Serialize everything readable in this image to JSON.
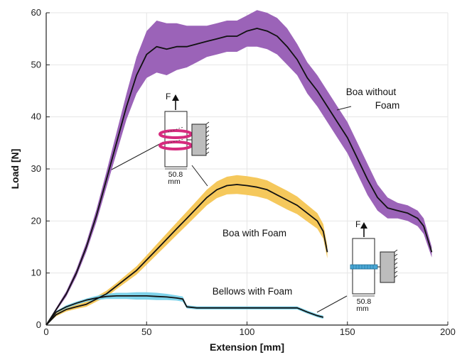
{
  "chart_data": {
    "type": "area",
    "xlabel": "Extension [mm]",
    "ylabel": "Load [N]",
    "xlim": [
      0,
      200
    ],
    "ylim": [
      0,
      60
    ],
    "xticks": [
      0,
      50,
      100,
      150,
      200
    ],
    "yticks": [
      0,
      10,
      20,
      30,
      40,
      50,
      60
    ],
    "grid": true,
    "series": [
      {
        "name": "Boa without Foam",
        "band_color": "#9b63b8",
        "line_color": "#111111",
        "points": [
          [
            0,
            0
          ],
          [
            5,
            3
          ],
          [
            10,
            6
          ],
          [
            15,
            10
          ],
          [
            20,
            15
          ],
          [
            25,
            21
          ],
          [
            30,
            28
          ],
          [
            35,
            35
          ],
          [
            40,
            42
          ],
          [
            45,
            48
          ],
          [
            50,
            52
          ],
          [
            55,
            53.5
          ],
          [
            60,
            53
          ],
          [
            65,
            53.5
          ],
          [
            70,
            53.5
          ],
          [
            75,
            54
          ],
          [
            80,
            54.5
          ],
          [
            85,
            55
          ],
          [
            90,
            55.5
          ],
          [
            95,
            55.5
          ],
          [
            100,
            56.5
          ],
          [
            105,
            57
          ],
          [
            110,
            56.5
          ],
          [
            115,
            55.5
          ],
          [
            120,
            53.5
          ],
          [
            125,
            51
          ],
          [
            130,
            47.5
          ],
          [
            135,
            45
          ],
          [
            140,
            42
          ],
          [
            145,
            39
          ],
          [
            150,
            36
          ],
          [
            155,
            32
          ],
          [
            160,
            28
          ],
          [
            165,
            24.5
          ],
          [
            170,
            22.5
          ],
          [
            175,
            22
          ],
          [
            180,
            21.5
          ],
          [
            185,
            20.5
          ],
          [
            188,
            19
          ],
          [
            192,
            14
          ]
        ],
        "halfwidth": [
          0,
          0.3,
          0.5,
          0.7,
          0.9,
          1.2,
          1.5,
          2,
          2.5,
          3.5,
          4.5,
          5,
          5,
          4.5,
          4,
          3.5,
          3,
          3,
          3,
          3,
          3,
          3.5,
          3.5,
          3.5,
          3.5,
          3,
          3,
          3,
          3,
          3,
          3,
          3,
          3,
          2.5,
          2,
          1.5,
          1.5,
          1.5,
          1.5,
          1
        ]
      },
      {
        "name": "Boa with Foam",
        "band_color": "#f5c85c",
        "line_color": "#111111",
        "points": [
          [
            0,
            0
          ],
          [
            5,
            2
          ],
          [
            10,
            3
          ],
          [
            15,
            3.5
          ],
          [
            20,
            4
          ],
          [
            25,
            5
          ],
          [
            30,
            6
          ],
          [
            35,
            7.5
          ],
          [
            40,
            9
          ],
          [
            45,
            10.5
          ],
          [
            50,
            12.5
          ],
          [
            55,
            14.5
          ],
          [
            60,
            16.5
          ],
          [
            65,
            18.5
          ],
          [
            70,
            20.5
          ],
          [
            75,
            22.5
          ],
          [
            80,
            24.5
          ],
          [
            85,
            26
          ],
          [
            90,
            26.8
          ],
          [
            95,
            27
          ],
          [
            100,
            26.8
          ],
          [
            105,
            26.5
          ],
          [
            110,
            26
          ],
          [
            115,
            25
          ],
          [
            120,
            24
          ],
          [
            125,
            23
          ],
          [
            130,
            21.5
          ],
          [
            135,
            20
          ],
          [
            138,
            18
          ],
          [
            140,
            14
          ]
        ],
        "halfwidth": [
          0,
          0.3,
          0.4,
          0.4,
          0.5,
          0.5,
          0.6,
          0.6,
          0.7,
          0.8,
          0.9,
          1,
          1.1,
          1.2,
          1.3,
          1.4,
          1.5,
          1.6,
          1.7,
          1.8,
          1.8,
          1.8,
          1.8,
          1.8,
          1.8,
          1.7,
          1.6,
          1.5,
          1.4,
          1.2
        ]
      },
      {
        "name": "Bellows with Foam",
        "band_color": "#7fd3ea",
        "line_color": "#111111",
        "points": [
          [
            0,
            0
          ],
          [
            5,
            2.5
          ],
          [
            10,
            3.5
          ],
          [
            15,
            4.2
          ],
          [
            20,
            4.8
          ],
          [
            25,
            5.2
          ],
          [
            30,
            5.5
          ],
          [
            35,
            5.6
          ],
          [
            40,
            5.6
          ],
          [
            45,
            5.6
          ],
          [
            50,
            5.6
          ],
          [
            55,
            5.5
          ],
          [
            60,
            5.4
          ],
          [
            65,
            5.2
          ],
          [
            68,
            5
          ],
          [
            70,
            3.5
          ],
          [
            75,
            3.3
          ],
          [
            80,
            3.3
          ],
          [
            90,
            3.3
          ],
          [
            100,
            3.3
          ],
          [
            110,
            3.3
          ],
          [
            120,
            3.3
          ],
          [
            125,
            3.3
          ],
          [
            130,
            2.5
          ],
          [
            135,
            1.8
          ],
          [
            138,
            1.5
          ]
        ],
        "halfwidth": [
          0,
          0.2,
          0.3,
          0.3,
          0.3,
          0.4,
          0.5,
          0.6,
          0.6,
          0.7,
          0.7,
          0.7,
          0.6,
          0.5,
          0.5,
          0.3,
          0.3,
          0.3,
          0.3,
          0.3,
          0.3,
          0.3,
          0.3,
          0.3,
          0.3,
          0.3
        ]
      }
    ],
    "annotations": [
      {
        "text": [
          "Boa without",
          "Foam"
        ]
      },
      {
        "text": [
          "Boa with Foam"
        ]
      },
      {
        "text": [
          "Bellows with Foam"
        ]
      }
    ],
    "insets": [
      {
        "force_label": "F",
        "dimension": [
          "50.8",
          "mm"
        ],
        "coil_color": "#d62a7e"
      },
      {
        "force_label": "F",
        "dimension": [
          "50.8",
          "mm"
        ],
        "coil_color": "#4aa6d4"
      }
    ]
  }
}
